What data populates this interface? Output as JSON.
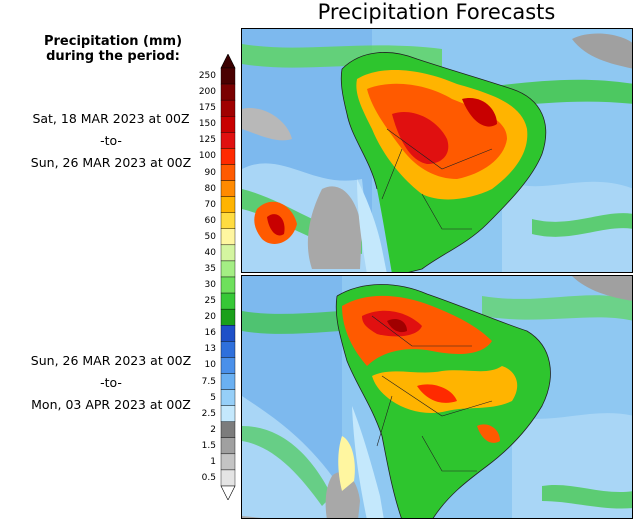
{
  "title": "Precipitation Forecasts",
  "legend": {
    "title_line1": "Precipitation (mm)",
    "title_line2": "during the period:",
    "unit": "mm",
    "levels": [
      "250",
      "200",
      "175",
      "150",
      "125",
      "100",
      "90",
      "80",
      "70",
      "60",
      "50",
      "40",
      "35",
      "30",
      "25",
      "20",
      "16",
      "13",
      "10",
      "7.5",
      "5",
      "2.5",
      "2",
      "1.5",
      "1",
      "0.5"
    ],
    "colors": [
      "#4a0000",
      "#7a0000",
      "#a00000",
      "#c80000",
      "#e01010",
      "#ff2a00",
      "#ff5a00",
      "#ff8a00",
      "#ffb400",
      "#ffdc40",
      "#fff6a0",
      "#d4f5a0",
      "#a4ee84",
      "#6ee05c",
      "#36c836",
      "#1aa01a",
      "#1e50c8",
      "#2f70dc",
      "#4a90ea",
      "#6ab0f2",
      "#96cff8",
      "#c4e8fc",
      "#7c7c7c",
      "#a0a0a0",
      "#c4c4c4",
      "#e4e4e4"
    ]
  },
  "periods": [
    {
      "start": "Sat, 18 MAR 2023 at 00Z",
      "sep": "-to-",
      "end": "Sun, 26 MAR 2023 at 00Z"
    },
    {
      "start": "Sun, 26 MAR 2023 at 00Z",
      "sep": "-to-",
      "end": "Mon, 03 APR 2023 at 00Z"
    }
  ],
  "maps": [
    "forecast-map-week1",
    "forecast-map-week2"
  ]
}
